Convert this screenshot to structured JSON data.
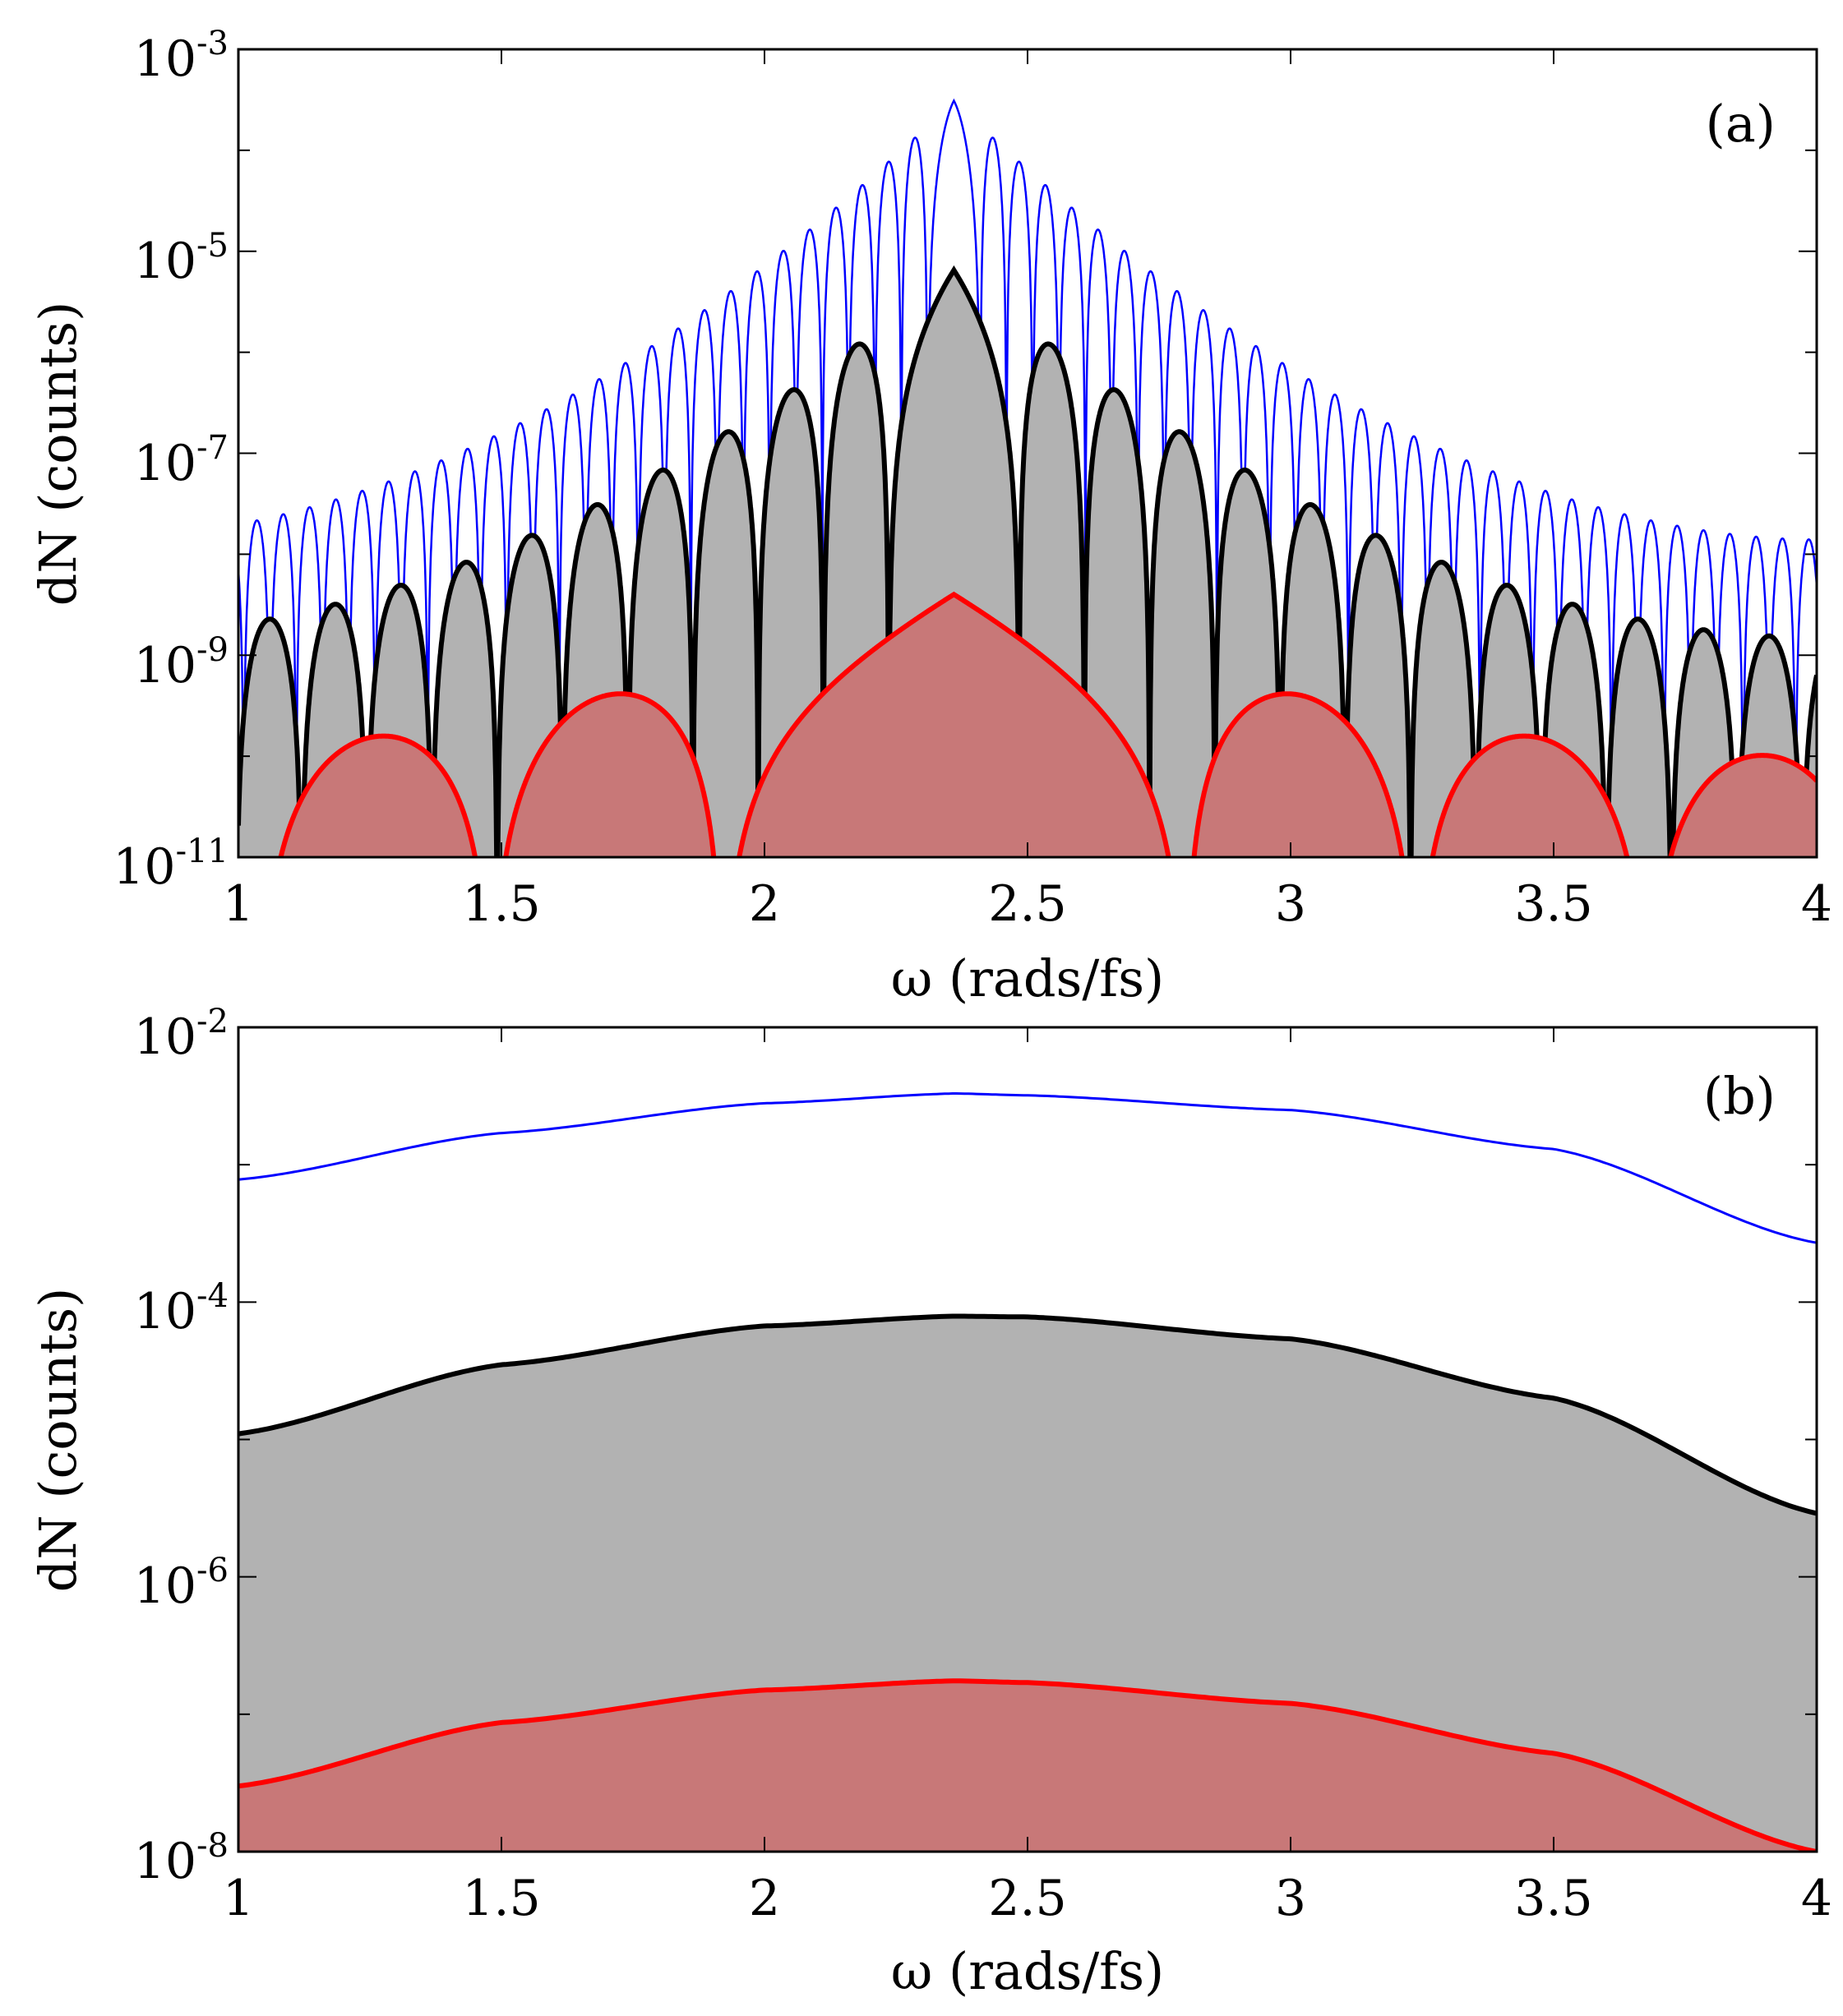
{
  "chart_data": [
    {
      "panel": "(a)",
      "type": "line",
      "y_scale": "log",
      "xlabel": "ω (rads/fs)",
      "ylabel": "dN (counts)",
      "xlim": [
        1,
        4
      ],
      "ylim": [
        1e-11,
        0.001
      ],
      "x_ticks": [
        "1",
        "1.5",
        "2",
        "2.5",
        "3",
        "3.5",
        "4"
      ],
      "y_ticks": [
        {
          "base": "10",
          "exp": "-3"
        },
        {
          "base": "10",
          "exp": "-5"
        },
        {
          "base": "10",
          "exp": "-7"
        },
        {
          "base": "10",
          "exp": "-9"
        },
        {
          "base": "10",
          "exp": "-11"
        }
      ],
      "series": [
        {
          "name": "blue",
          "color": "#0000ff",
          "filled": false,
          "center": 2.36,
          "peak": 0.00031,
          "period": 0.05,
          "wing_at_edge": 1.4e-08,
          "phase_offset": 0.5
        },
        {
          "name": "black",
          "color": "#000000",
          "fill": "#b2b2b2",
          "filled": true,
          "center": 2.36,
          "peak": 6.5e-06,
          "period": 0.124,
          "wing_at_edge": 1.5e-09,
          "phase_offset": 0.5
        },
        {
          "name": "red",
          "color": "#ff0000",
          "fill": "#c87878",
          "filled": true,
          "center": 2.36,
          "peak": 4e-09,
          "period": 0.44,
          "wing_at_edge": 1e-10,
          "phase_offset": 0.5
        }
      ]
    },
    {
      "panel": "(b)",
      "type": "line",
      "y_scale": "log",
      "xlabel": "ω (rads/fs)",
      "ylabel": "dN (counts)",
      "xlim": [
        1,
        4
      ],
      "ylim": [
        1e-08,
        0.01
      ],
      "x_ticks": [
        "1",
        "1.5",
        "2",
        "2.5",
        "3",
        "3.5",
        "4"
      ],
      "y_ticks": [
        {
          "base": "10",
          "exp": "-2"
        },
        {
          "base": "10",
          "exp": "-4"
        },
        {
          "base": "10",
          "exp": "-6"
        },
        {
          "base": "10",
          "exp": "-8"
        }
      ],
      "series": [
        {
          "name": "blue",
          "color": "#0000ff",
          "filled": false,
          "x": [
            1.0,
            1.5,
            2.0,
            2.36,
            2.5,
            3.0,
            3.5,
            4.0
          ],
          "y": [
            0.00078,
            0.0017,
            0.0028,
            0.0033,
            0.0032,
            0.0025,
            0.0013,
            0.00027
          ]
        },
        {
          "name": "black",
          "color": "#000000",
          "fill": "#b2b2b2",
          "filled": true,
          "x": [
            1.0,
            1.5,
            2.0,
            2.36,
            2.5,
            3.0,
            3.5,
            4.0
          ],
          "y": [
            1.1e-05,
            3.5e-05,
            6.7e-05,
            7.9e-05,
            7.8e-05,
            5.4e-05,
            2e-05,
            2.9e-06
          ]
        },
        {
          "name": "red",
          "color": "#ff0000",
          "fill": "#c87878",
          "filled": true,
          "x": [
            1.0,
            1.5,
            2.0,
            2.36,
            2.5,
            3.0,
            3.5,
            4.0
          ],
          "y": [
            3e-08,
            8.7e-08,
            1.5e-07,
            1.75e-07,
            1.7e-07,
            1.2e-07,
            5.2e-08,
            1e-08
          ]
        }
      ]
    }
  ]
}
